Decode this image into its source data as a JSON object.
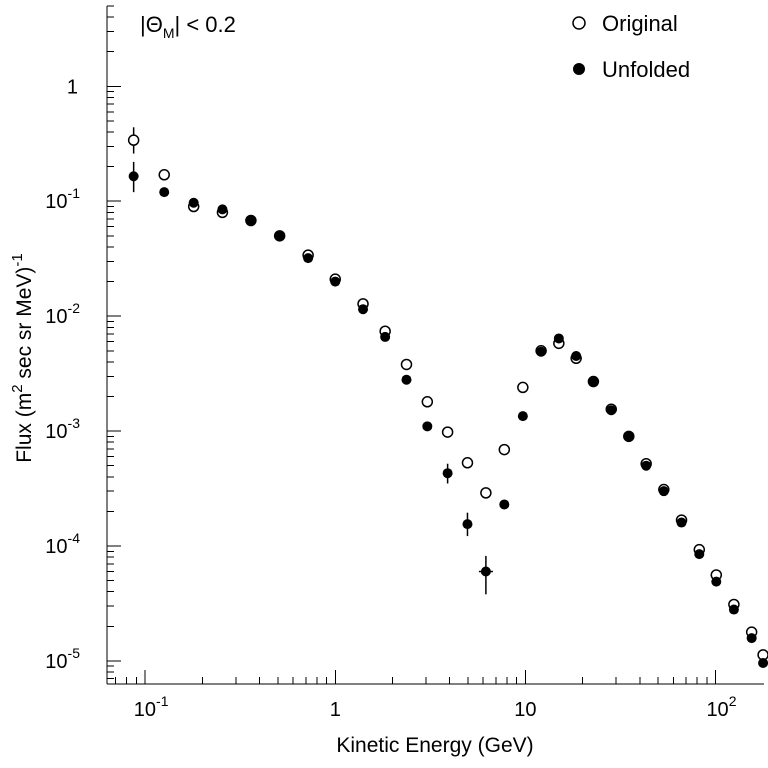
{
  "chart_data": {
    "type": "scatter",
    "title": "",
    "xlabel": "Kinetic Energy (GeV)",
    "ylabel": {
      "prefix": "Flux (m",
      "sup1": "2",
      "middle": " sec sr MeV)",
      "sup2": "-1"
    },
    "xscale": "log",
    "yscale": "log",
    "xlim": [
      0.063,
      180
    ],
    "ylim": [
      6.3e-06,
      5
    ],
    "grid": false,
    "legend_position": "top-right",
    "annotation": {
      "prefix": "|Θ",
      "sub": "M",
      "suffix": "| < 0.2"
    },
    "x_ticks": [
      {
        "value": 0.1,
        "base": "10",
        "exp": "-1"
      },
      {
        "value": 1,
        "base": "1",
        "exp": ""
      },
      {
        "value": 10,
        "base": "10",
        "exp": ""
      },
      {
        "value": 100,
        "base": "10",
        "exp": "2"
      }
    ],
    "y_ticks": [
      {
        "value": 1e-05,
        "base": "10",
        "exp": "-5"
      },
      {
        "value": 0.0001,
        "base": "10",
        "exp": "-4"
      },
      {
        "value": 0.001,
        "base": "10",
        "exp": "-3"
      },
      {
        "value": 0.01,
        "base": "10",
        "exp": "-2"
      },
      {
        "value": 0.1,
        "base": "10",
        "exp": "-1"
      },
      {
        "value": 1,
        "base": "1",
        "exp": ""
      }
    ],
    "series": [
      {
        "name": "Original",
        "marker": "open-circle",
        "points": [
          {
            "x": 0.087,
            "y": 0.34,
            "ylo": 0.26,
            "yhi": 0.44
          },
          {
            "x": 0.126,
            "y": 0.17
          },
          {
            "x": 0.18,
            "y": 0.09
          },
          {
            "x": 0.255,
            "y": 0.08
          },
          {
            "x": 0.36,
            "y": 0.068
          },
          {
            "x": 0.51,
            "y": 0.05
          },
          {
            "x": 0.72,
            "y": 0.034
          },
          {
            "x": 1.0,
            "y": 0.021
          },
          {
            "x": 1.4,
            "y": 0.0128
          },
          {
            "x": 1.83,
            "y": 0.0074
          },
          {
            "x": 2.37,
            "y": 0.0038
          },
          {
            "x": 3.05,
            "y": 0.0018
          },
          {
            "x": 3.9,
            "y": 0.00098
          },
          {
            "x": 4.96,
            "y": 0.00053
          },
          {
            "x": 6.2,
            "y": 0.00029
          },
          {
            "x": 7.75,
            "y": 0.00069
          },
          {
            "x": 9.7,
            "y": 0.0024
          },
          {
            "x": 12.1,
            "y": 0.005
          },
          {
            "x": 15.0,
            "y": 0.0058
          },
          {
            "x": 18.5,
            "y": 0.0043
          },
          {
            "x": 22.8,
            "y": 0.0027
          },
          {
            "x": 28.3,
            "y": 0.00155
          },
          {
            "x": 35.0,
            "y": 0.0009
          },
          {
            "x": 43.2,
            "y": 0.00052
          },
          {
            "x": 53.5,
            "y": 0.00031
          },
          {
            "x": 66.3,
            "y": 0.000168
          },
          {
            "x": 82.2,
            "y": 9.3e-05
          },
          {
            "x": 101.0,
            "y": 5.6e-05
          },
          {
            "x": 125.0,
            "y": 3.1e-05
          },
          {
            "x": 155.0,
            "y": 1.78e-05
          },
          {
            "x": 178.0,
            "y": 1.13e-05
          }
        ]
      },
      {
        "name": "Unfolded",
        "marker": "filled-circle",
        "points": [
          {
            "x": 0.087,
            "y": 0.165,
            "ylo": 0.12,
            "yhi": 0.22
          },
          {
            "x": 0.126,
            "y": 0.12
          },
          {
            "x": 0.18,
            "y": 0.097
          },
          {
            "x": 0.255,
            "y": 0.085
          },
          {
            "x": 0.36,
            "y": 0.068
          },
          {
            "x": 0.51,
            "y": 0.05
          },
          {
            "x": 0.72,
            "y": 0.032
          },
          {
            "x": 1.0,
            "y": 0.02
          },
          {
            "x": 1.4,
            "y": 0.0115
          },
          {
            "x": 1.83,
            "y": 0.0066
          },
          {
            "x": 2.37,
            "y": 0.0028
          },
          {
            "x": 3.05,
            "y": 0.0011
          },
          {
            "x": 3.9,
            "y": 0.00043,
            "ylo": 0.00035,
            "yhi": 0.00052
          },
          {
            "x": 4.96,
            "y": 0.000155,
            "ylo": 0.000122,
            "yhi": 0.000195
          },
          {
            "x": 6.2,
            "y": 6e-05,
            "ylo": 3.8e-05,
            "yhi": 8.2e-05
          },
          {
            "x": 7.75,
            "y": 0.00023
          },
          {
            "x": 9.7,
            "y": 0.00135
          },
          {
            "x": 12.1,
            "y": 0.0049
          },
          {
            "x": 15.0,
            "y": 0.0064
          },
          {
            "x": 18.5,
            "y": 0.0045
          },
          {
            "x": 22.8,
            "y": 0.0027
          },
          {
            "x": 28.3,
            "y": 0.00152
          },
          {
            "x": 35.0,
            "y": 0.0009
          },
          {
            "x": 43.2,
            "y": 0.0005
          },
          {
            "x": 53.5,
            "y": 0.0003
          },
          {
            "x": 66.3,
            "y": 0.00016
          },
          {
            "x": 82.2,
            "y": 8.5e-05
          },
          {
            "x": 101.0,
            "y": 4.9e-05
          },
          {
            "x": 125.0,
            "y": 2.8e-05
          },
          {
            "x": 155.0,
            "y": 1.58e-05
          },
          {
            "x": 178.0,
            "y": 9.6e-06
          }
        ]
      }
    ]
  }
}
